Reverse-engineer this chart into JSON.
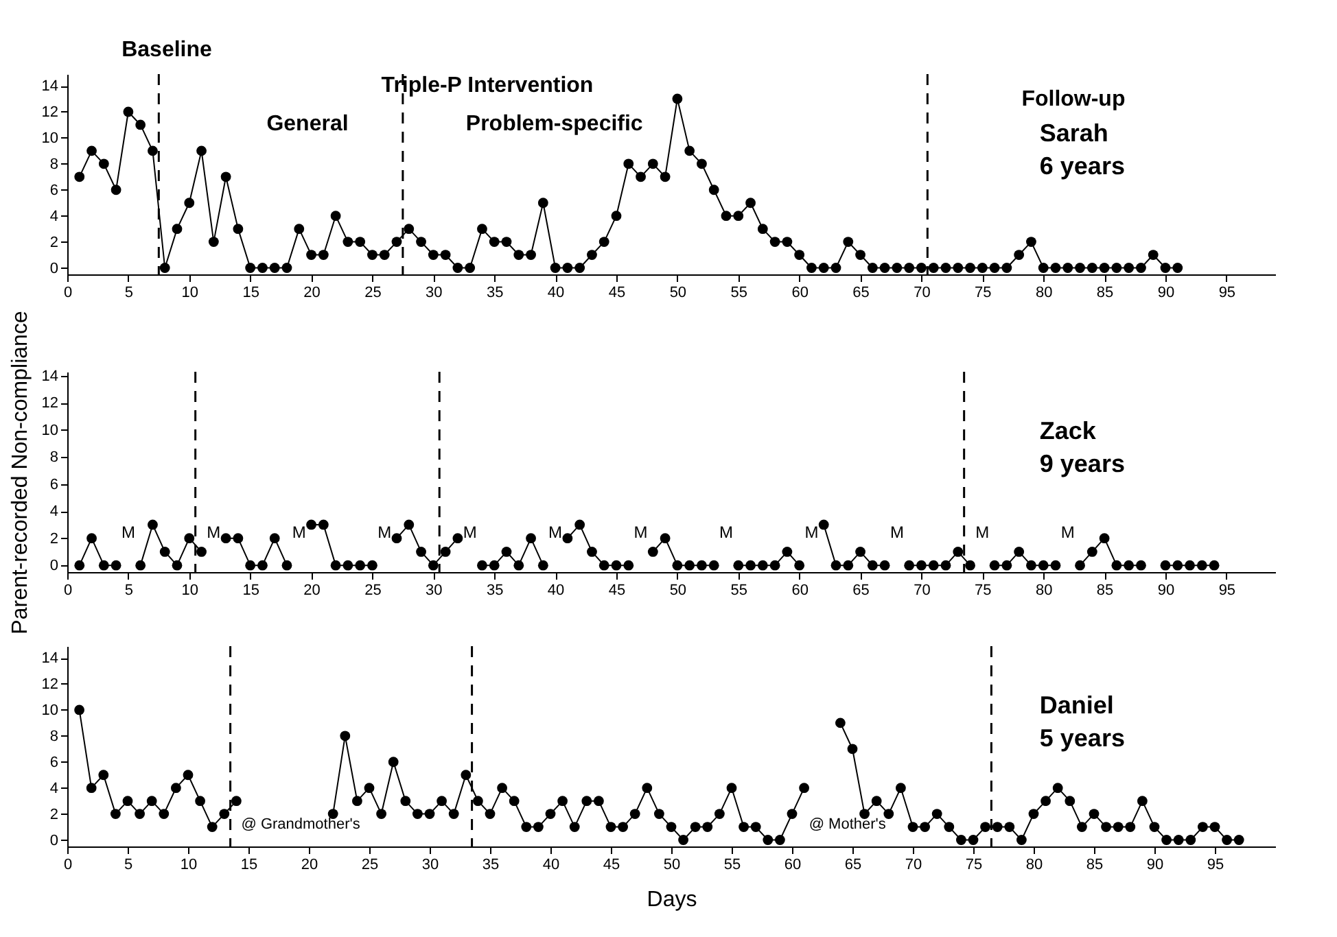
{
  "chart_data": [
    {
      "type": "line",
      "title": "Sarah",
      "subtitle": "6 years",
      "marker": "circle",
      "line_style": "solid",
      "xlim": [
        0,
        99
      ],
      "ylim": [
        -0.5,
        14.9
      ],
      "xticks": [
        0,
        5,
        10,
        15,
        20,
        25,
        30,
        35,
        40,
        45,
        50,
        55,
        60,
        65,
        70,
        75,
        80,
        85,
        90,
        95
      ],
      "yticks": [
        0,
        2,
        4,
        6,
        8,
        10,
        12,
        14
      ],
      "x": [
        1,
        2,
        3,
        4,
        5,
        6,
        7,
        8,
        9,
        10,
        11,
        12,
        13,
        14,
        15,
        16,
        17,
        18,
        19,
        20,
        21,
        22,
        23,
        24,
        25,
        26,
        27,
        28,
        29,
        30,
        31,
        32,
        33,
        34,
        35,
        36,
        37,
        38,
        39,
        40,
        41,
        42,
        43,
        44,
        45,
        46,
        47,
        48,
        49,
        50,
        51,
        52,
        53,
        54,
        55,
        56,
        57,
        58,
        59,
        60,
        61,
        62,
        63,
        64,
        65,
        66,
        67,
        68,
        69,
        70,
        71,
        72,
        73,
        74,
        75,
        76,
        77,
        78,
        79,
        80,
        81,
        82,
        83,
        84,
        85,
        86,
        87,
        88,
        89,
        90,
        91
      ],
      "series": [
        {
          "color": "#000000",
          "values": [
            7,
            9,
            8,
            6,
            12,
            11,
            9,
            0,
            3,
            5,
            9,
            2,
            7,
            3,
            0,
            0,
            0,
            0,
            3,
            1,
            1,
            4,
            2,
            2,
            1,
            1,
            2,
            3,
            2,
            1,
            1,
            0,
            0,
            3,
            2,
            2,
            1,
            1,
            5,
            0,
            0,
            0,
            1,
            2,
            4,
            8,
            7,
            8,
            7,
            13,
            9,
            8,
            6,
            4,
            4,
            5,
            3,
            2,
            2,
            1,
            0,
            0,
            0,
            2,
            1,
            0,
            0,
            0,
            0,
            0,
            0,
            0,
            0,
            0,
            0,
            0,
            0,
            1,
            2,
            0,
            0,
            0,
            0,
            0,
            0,
            0,
            0,
            0,
            1,
            0,
            0
          ]
        }
      ],
      "ref_lines": [
        {
          "axis": "x",
          "value": 7.5,
          "line_style": "dashed"
        },
        {
          "axis": "x",
          "value": 27.5,
          "line_style": "dashed"
        },
        {
          "axis": "x",
          "value": 70.5,
          "line_style": "dashed"
        }
      ],
      "annotations": [
        "Baseline",
        "Triple-P Intervention",
        "General",
        "Problem-specific",
        "Follow-up"
      ]
    },
    {
      "type": "line",
      "title": "Zack",
      "subtitle": "9 years",
      "ylabel": "Parent-recorded Non-compliance",
      "marker": "circle",
      "line_style": "solid",
      "xlim": [
        0,
        99
      ],
      "ylim": [
        -0.5,
        14.3
      ],
      "xticks": [
        0,
        5,
        10,
        15,
        20,
        25,
        30,
        35,
        40,
        45,
        50,
        55,
        60,
        65,
        70,
        75,
        80,
        85,
        90,
        95
      ],
      "yticks": [
        0,
        2,
        4,
        6,
        8,
        10,
        12,
        14
      ],
      "x": [
        1,
        2,
        3,
        4,
        5,
        6,
        7,
        8,
        9,
        10,
        11,
        12,
        13,
        14,
        15,
        16,
        17,
        18,
        19,
        20,
        21,
        22,
        23,
        24,
        25,
        26,
        27,
        28,
        29,
        30,
        31,
        32,
        33,
        34,
        35,
        36,
        37,
        38,
        39,
        40,
        41,
        42,
        43,
        44,
        45,
        46,
        47,
        48,
        49,
        50,
        51,
        52,
        53,
        54,
        55,
        56,
        57,
        58,
        59,
        60,
        61,
        62,
        63,
        64,
        65,
        66,
        67,
        68,
        69,
        70,
        71,
        72,
        73,
        74,
        75,
        76,
        77,
        78,
        79,
        80,
        81,
        82,
        83,
        84,
        85,
        86,
        87,
        88,
        89,
        90,
        91,
        92,
        93,
        94
      ],
      "series": [
        {
          "color": "#000000",
          "values": [
            0,
            2,
            0,
            0,
            null,
            0,
            3,
            1,
            0,
            2,
            1,
            null,
            2,
            2,
            0,
            0,
            2,
            0,
            null,
            3,
            3,
            0,
            0,
            0,
            0,
            null,
            2,
            3,
            1,
            0,
            1,
            2,
            null,
            0,
            0,
            1,
            0,
            2,
            0,
            null,
            2,
            3,
            1,
            0,
            0,
            0,
            null,
            1,
            2,
            0,
            0,
            0,
            0,
            null,
            0,
            0,
            0,
            0,
            1,
            0,
            null,
            3,
            0,
            0,
            1,
            0,
            0,
            null,
            0,
            0,
            0,
            0,
            1,
            0,
            null,
            0,
            0,
            1,
            0,
            0,
            0,
            null,
            0,
            1,
            2,
            0,
            0,
            0,
            null,
            0,
            0,
            0,
            0,
            0
          ]
        }
      ],
      "ref_lines": [
        {
          "axis": "x",
          "value": 10.5,
          "line_style": "dashed"
        },
        {
          "axis": "x",
          "value": 30.5,
          "line_style": "dashed"
        },
        {
          "axis": "x",
          "value": 73.5,
          "line_style": "dashed"
        }
      ],
      "annotations": [
        "M",
        "M",
        "M",
        "M",
        "M",
        "M",
        "M",
        "M",
        "M",
        "M",
        "M",
        "M"
      ]
    },
    {
      "type": "line",
      "title": "Daniel",
      "subtitle": "5 years",
      "xlabel": "Days",
      "marker": "circle",
      "line_style": "solid",
      "xlim": [
        0,
        100
      ],
      "ylim": [
        -0.5,
        14.9
      ],
      "xticks": [
        0,
        5,
        10,
        15,
        20,
        25,
        30,
        35,
        40,
        45,
        50,
        55,
        60,
        65,
        70,
        75,
        80,
        85,
        90,
        95
      ],
      "yticks": [
        0,
        2,
        4,
        6,
        8,
        10,
        12,
        14
      ],
      "x": [
        1,
        2,
        3,
        4,
        5,
        6,
        7,
        8,
        9,
        10,
        11,
        12,
        13,
        14,
        15,
        16,
        17,
        18,
        19,
        20,
        21,
        22,
        23,
        24,
        25,
        26,
        27,
        28,
        29,
        30,
        31,
        32,
        33,
        34,
        35,
        36,
        37,
        38,
        39,
        40,
        41,
        42,
        43,
        44,
        45,
        46,
        47,
        48,
        49,
        50,
        51,
        52,
        53,
        54,
        55,
        56,
        57,
        58,
        59,
        60,
        61,
        62,
        63,
        64,
        65,
        66,
        67,
        68,
        69,
        70,
        71,
        72,
        73,
        74,
        75,
        76,
        77,
        78,
        79,
        80,
        81,
        82,
        83,
        84,
        85,
        86,
        87,
        88,
        89,
        90,
        91,
        92,
        93,
        94,
        95,
        96,
        97
      ],
      "series": [
        {
          "color": "#000000",
          "values": [
            10,
            4,
            5,
            2,
            3,
            2,
            3,
            2,
            4,
            5,
            3,
            1,
            2,
            3,
            null,
            null,
            null,
            null,
            null,
            null,
            null,
            2,
            8,
            3,
            4,
            2,
            6,
            3,
            2,
            2,
            3,
            2,
            5,
            3,
            2,
            4,
            3,
            1,
            1,
            2,
            3,
            1,
            3,
            3,
            1,
            1,
            2,
            4,
            2,
            1,
            0,
            1,
            1,
            2,
            4,
            1,
            1,
            0,
            0,
            2,
            4,
            null,
            null,
            9,
            7,
            2,
            3,
            2,
            4,
            1,
            1,
            2,
            1,
            0,
            0,
            1,
            1,
            1,
            0,
            2,
            3,
            4,
            3,
            1,
            2,
            1,
            1,
            1,
            3,
            1,
            0,
            0,
            0,
            1,
            1,
            0,
            0
          ]
        }
      ],
      "ref_lines": [
        {
          "axis": "x",
          "value": 13.5,
          "line_style": "dashed"
        },
        {
          "axis": "x",
          "value": 33.5,
          "line_style": "dashed"
        },
        {
          "axis": "x",
          "value": 76.5,
          "line_style": "dashed"
        }
      ],
      "annotations": [
        "@ Grandmother's",
        "@ Mother's"
      ]
    }
  ]
}
